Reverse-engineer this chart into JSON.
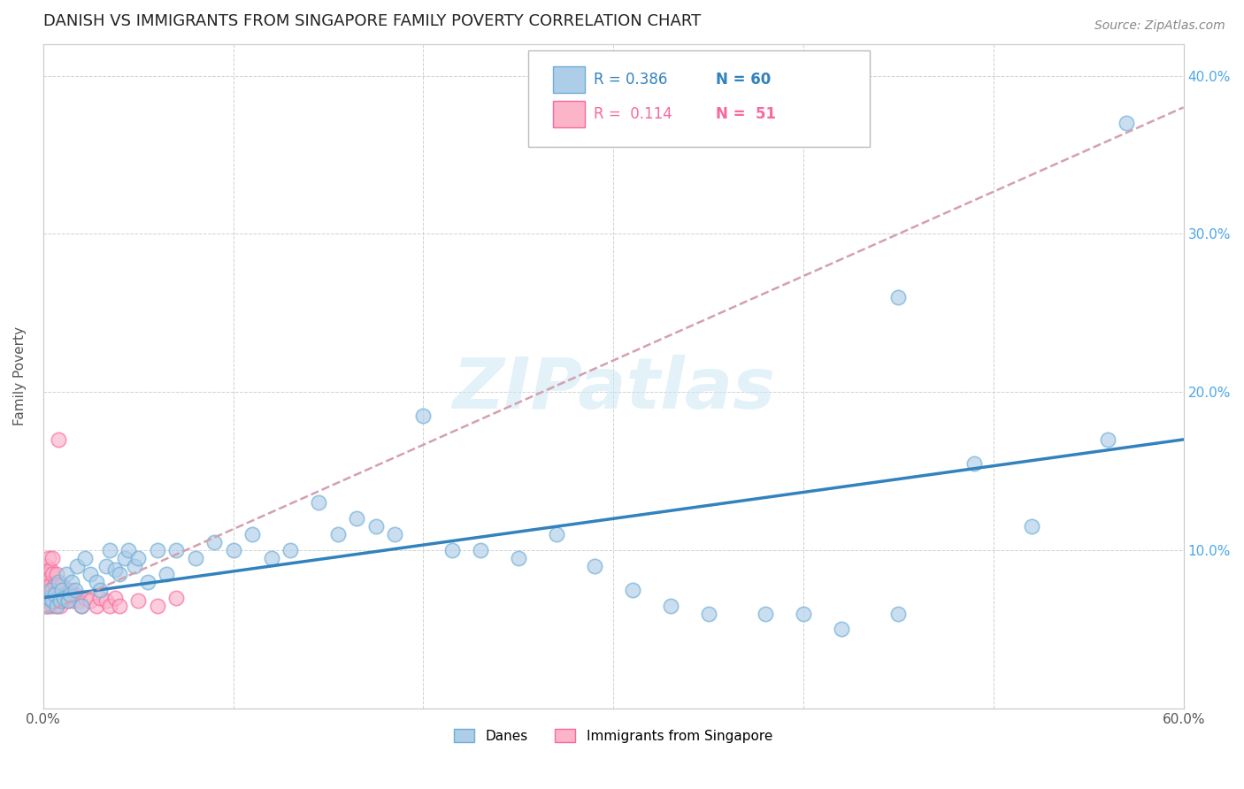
{
  "title": "DANISH VS IMMIGRANTS FROM SINGAPORE FAMILY POVERTY CORRELATION CHART",
  "source": "Source: ZipAtlas.com",
  "ylabel": "Family Poverty",
  "xlim": [
    0.0,
    0.6
  ],
  "ylim": [
    0.0,
    0.42
  ],
  "xtick_positions": [
    0.0,
    0.1,
    0.2,
    0.3,
    0.4,
    0.5,
    0.6
  ],
  "xtick_labels": [
    "0.0%",
    "",
    "",
    "",
    "",
    "",
    "60.0%"
  ],
  "ytick_positions": [
    0.1,
    0.2,
    0.3,
    0.4
  ],
  "ytick_right_labels": [
    "10.0%",
    "20.0%",
    "30.0%",
    "40.0%"
  ],
  "danes_color": "#6baed6",
  "danes_fill": "#aecde8",
  "immigrants_color": "#f768a1",
  "immigrants_fill": "#fbb4c8",
  "danes_R": 0.386,
  "danes_N": 60,
  "immigrants_R": 0.114,
  "immigrants_N": 51,
  "danes_line_color": "#3182bd",
  "immigrants_line_color": "#d4a0b0",
  "watermark": "ZIPatlas",
  "background_color": "#ffffff",
  "grid_color": "#cccccc",
  "title_fontsize": 13,
  "danes_x": [
    0.002,
    0.003,
    0.004,
    0.005,
    0.006,
    0.007,
    0.008,
    0.009,
    0.01,
    0.011,
    0.012,
    0.013,
    0.014,
    0.015,
    0.017,
    0.018,
    0.02,
    0.022,
    0.025,
    0.028,
    0.03,
    0.033,
    0.035,
    0.038,
    0.04,
    0.043,
    0.045,
    0.048,
    0.05,
    0.055,
    0.06,
    0.065,
    0.07,
    0.08,
    0.09,
    0.1,
    0.11,
    0.12,
    0.13,
    0.145,
    0.155,
    0.165,
    0.175,
    0.185,
    0.2,
    0.215,
    0.23,
    0.25,
    0.27,
    0.29,
    0.31,
    0.33,
    0.35,
    0.38,
    0.4,
    0.42,
    0.45,
    0.49,
    0.52,
    0.56
  ],
  "danes_y": [
    0.065,
    0.07,
    0.075,
    0.068,
    0.072,
    0.065,
    0.08,
    0.068,
    0.075,
    0.07,
    0.085,
    0.068,
    0.072,
    0.08,
    0.075,
    0.09,
    0.065,
    0.095,
    0.085,
    0.08,
    0.075,
    0.09,
    0.1,
    0.088,
    0.085,
    0.095,
    0.1,
    0.09,
    0.095,
    0.08,
    0.1,
    0.085,
    0.1,
    0.095,
    0.105,
    0.1,
    0.11,
    0.095,
    0.1,
    0.13,
    0.11,
    0.12,
    0.115,
    0.11,
    0.185,
    0.1,
    0.1,
    0.095,
    0.11,
    0.09,
    0.075,
    0.065,
    0.06,
    0.06,
    0.06,
    0.05,
    0.06,
    0.155,
    0.115,
    0.17
  ],
  "immigrants_x": [
    0.001,
    0.001,
    0.001,
    0.002,
    0.002,
    0.002,
    0.003,
    0.003,
    0.003,
    0.003,
    0.004,
    0.004,
    0.004,
    0.005,
    0.005,
    0.005,
    0.005,
    0.006,
    0.006,
    0.006,
    0.007,
    0.007,
    0.007,
    0.008,
    0.008,
    0.009,
    0.009,
    0.01,
    0.01,
    0.011,
    0.012,
    0.013,
    0.014,
    0.015,
    0.016,
    0.017,
    0.018,
    0.019,
    0.02,
    0.022,
    0.025,
    0.028,
    0.03,
    0.033,
    0.035,
    0.038,
    0.04,
    0.05,
    0.06,
    0.07,
    0.008
  ],
  "immigrants_y": [
    0.065,
    0.075,
    0.085,
    0.07,
    0.08,
    0.09,
    0.065,
    0.075,
    0.085,
    0.095,
    0.068,
    0.078,
    0.088,
    0.065,
    0.075,
    0.085,
    0.095,
    0.068,
    0.078,
    0.07,
    0.065,
    0.075,
    0.085,
    0.068,
    0.078,
    0.065,
    0.075,
    0.068,
    0.078,
    0.072,
    0.07,
    0.068,
    0.075,
    0.07,
    0.068,
    0.072,
    0.07,
    0.068,
    0.065,
    0.07,
    0.068,
    0.065,
    0.07,
    0.068,
    0.065,
    0.07,
    0.065,
    0.068,
    0.065,
    0.07,
    0.17
  ]
}
